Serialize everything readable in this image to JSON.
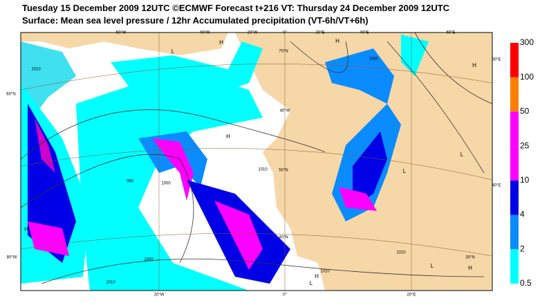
{
  "header": {
    "line1": "Tuesday 15 December 2009 12UTC ©ECMWF Forecast t+216 VT: Thursday 24 December 2009 12UTC",
    "line2": "Surface: Mean sea level pressure / 12hr Accumulated precipitation (VT-6h/VT+6h)"
  },
  "colorbar": {
    "levels": [
      0.5,
      2,
      4,
      10,
      25,
      50,
      100,
      300
    ],
    "colors": [
      "#00ffff",
      "#0a8cff",
      "#0000e6",
      "#ff00ff",
      "#ff00ff",
      "#ff8000",
      "#ff0000"
    ]
  },
  "map": {
    "grid_labels": [
      "60°W",
      "40°W",
      "20°W",
      "0°",
      "20°E",
      "40°E",
      "60°E",
      "60°N",
      "50°N",
      "40°N",
      "30°N",
      "20°W",
      "0°",
      "20°E",
      "80°W",
      "40°W",
      "60°E",
      "40°E",
      "70°N"
    ],
    "pressure_labels": [
      "H",
      "H",
      "H",
      "H",
      "H",
      "L",
      "L",
      "L",
      "L",
      "H",
      "L",
      "H"
    ],
    "isobar_labels": [
      "1010",
      "1000",
      "990",
      "1010",
      "1000",
      "1010",
      "1020",
      "1010",
      "1020"
    ]
  }
}
